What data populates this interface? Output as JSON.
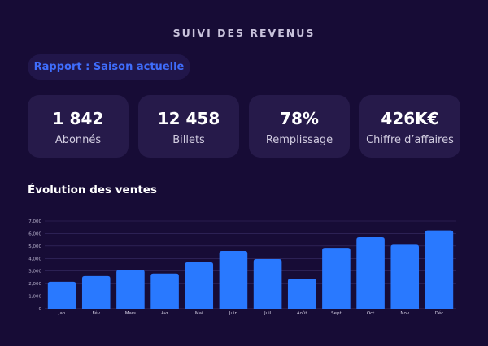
{
  "header": {
    "title": "SUIVI DES REVENUS"
  },
  "report": {
    "label": "Rapport : Saison actuelle"
  },
  "kpis": [
    {
      "value": "1 842",
      "label": "Abonnés"
    },
    {
      "value": "12 458",
      "label": "Billets"
    },
    {
      "value": "78%",
      "label": "Remplissage"
    },
    {
      "value": "426K€",
      "label": "Chiffre d’affaires"
    }
  ],
  "sales": {
    "title": "Évolution des ventes"
  },
  "colors": {
    "background": "#170c36",
    "card": "#261a4a",
    "accent": "#3f6dfc",
    "bar": "#2979ff"
  },
  "chart_data": {
    "type": "bar",
    "title": "Évolution des ventes",
    "categories": [
      "Jan",
      "Fév",
      "Mars",
      "Avr",
      "Mai",
      "Juin",
      "Juil",
      "Août",
      "Sept",
      "Oct",
      "Nov",
      "Déc"
    ],
    "values": [
      2150,
      2600,
      3100,
      2800,
      3700,
      4600,
      3950,
      2400,
      4850,
      5700,
      5100,
      6250
    ],
    "ylim": [
      0,
      7000
    ],
    "yticks": [
      "0",
      "1,000",
      "2,000",
      "3,000",
      "4,000",
      "5,000",
      "6,000",
      "7,000"
    ],
    "grid": true,
    "xlabel": "",
    "ylabel": ""
  }
}
